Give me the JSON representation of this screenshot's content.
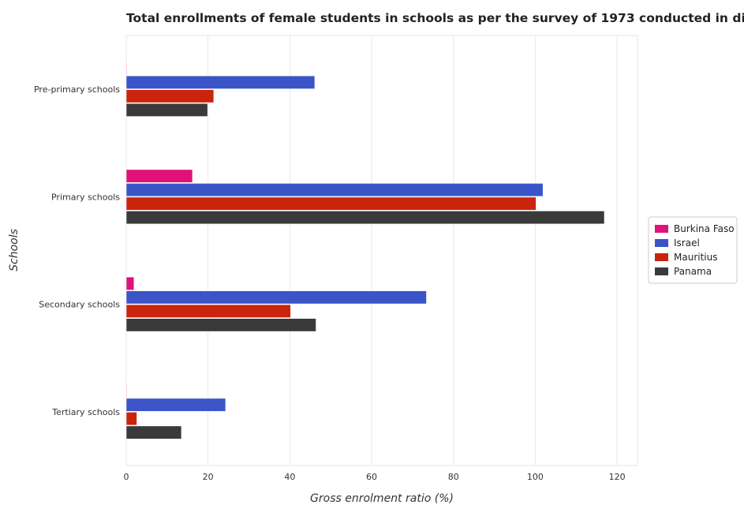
{
  "chart_data": {
    "type": "bar",
    "orientation": "horizontal",
    "title": "Total enrollments of female students in schools as per the survey of 1973 conducted in differ",
    "xlabel": "Gross enrolment ratio (%)",
    "ylabel": "Schools",
    "categories": [
      "Pre-primary schools",
      "Primary schools",
      "Secondary schools",
      "Tertiary schools"
    ],
    "series": [
      {
        "name": "Burkina Faso",
        "color": "#e0127a",
        "values": [
          0.05,
          16.2,
          1.9,
          0.03
        ]
      },
      {
        "name": "Israel",
        "color": "#3b55c8",
        "values": [
          46.1,
          101.9,
          73.4,
          24.3
        ]
      },
      {
        "name": "Mauritius",
        "color": "#c9240c",
        "values": [
          21.4,
          100.2,
          40.2,
          2.6
        ]
      },
      {
        "name": "Panama",
        "color": "#3a3a3a",
        "values": [
          19.9,
          116.9,
          46.4,
          13.5
        ]
      }
    ],
    "xlim": [
      0,
      125
    ],
    "xticks": [
      0,
      20,
      40,
      60,
      80,
      100,
      120
    ],
    "grid": true,
    "legend": "right"
  }
}
